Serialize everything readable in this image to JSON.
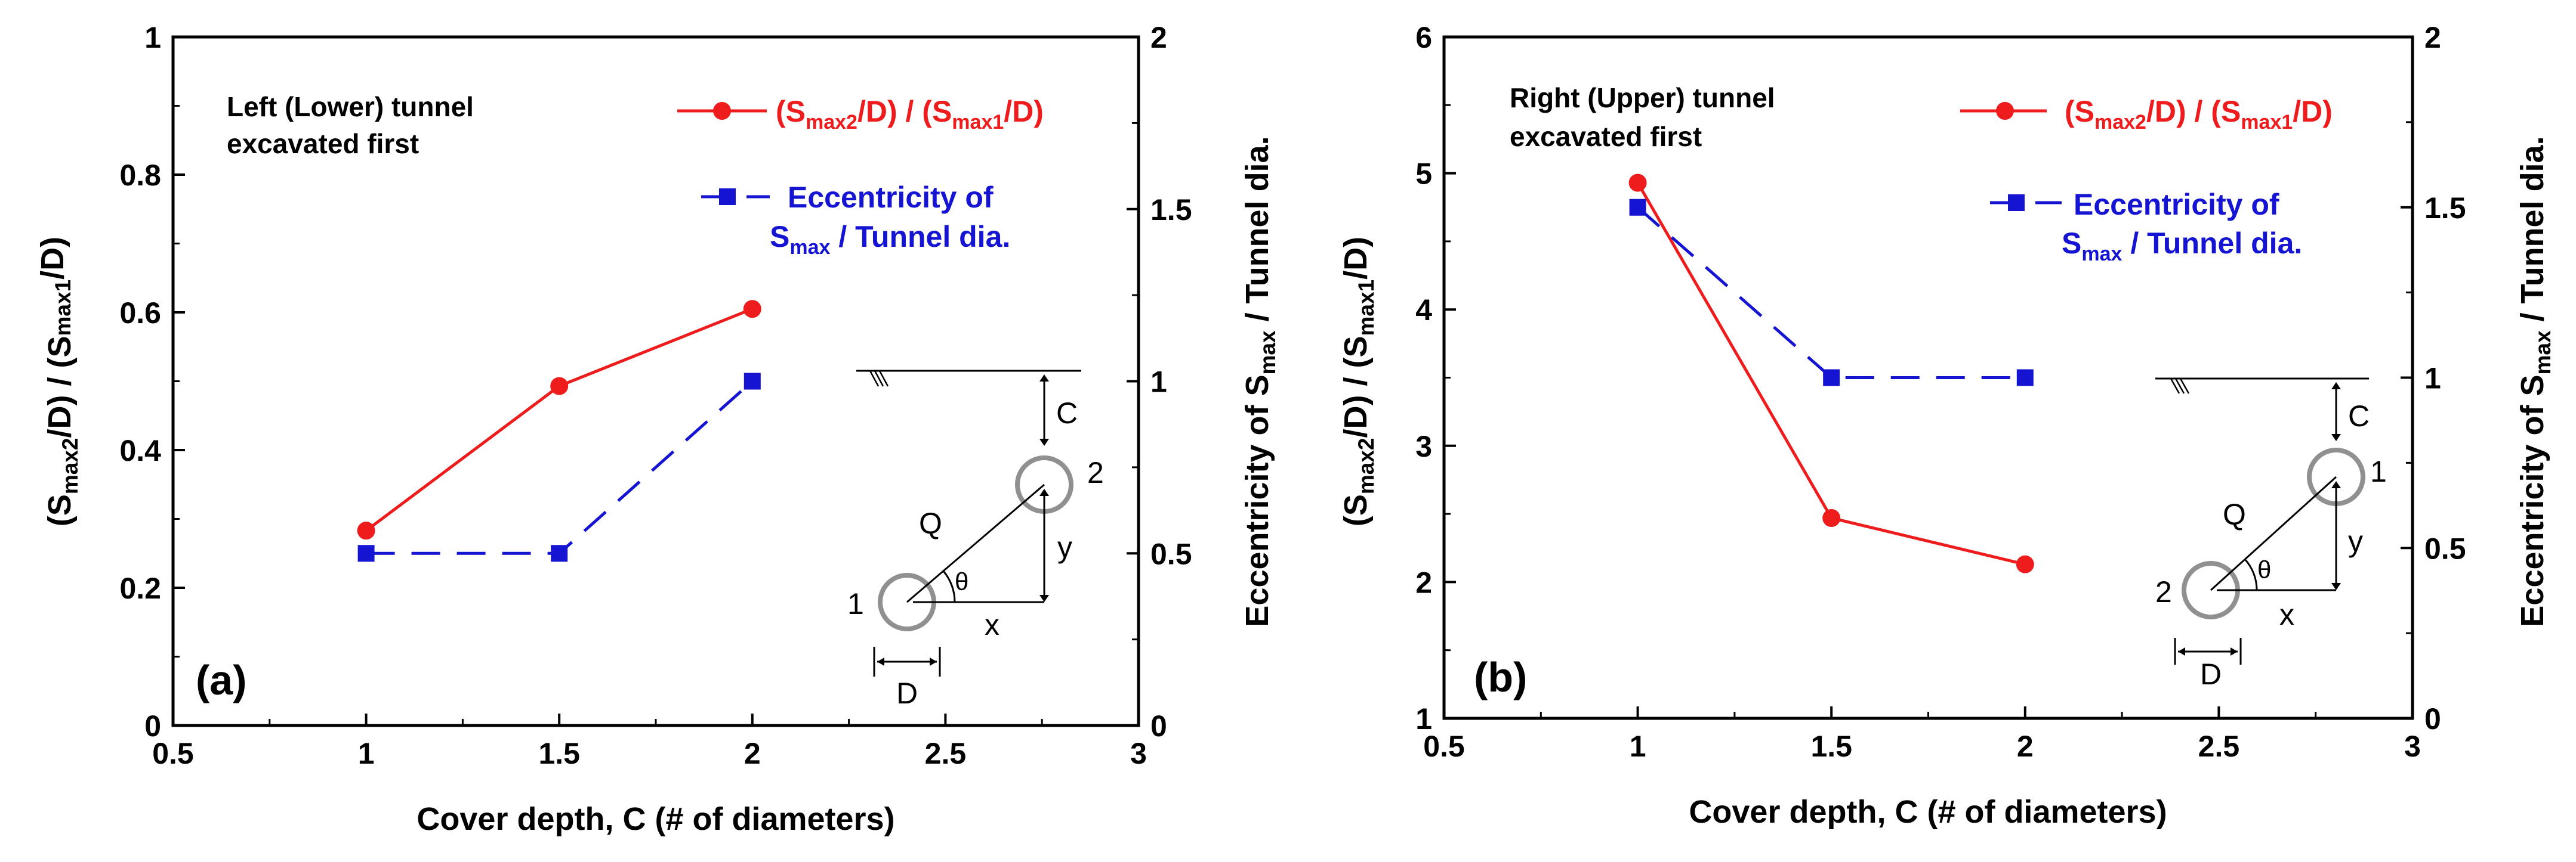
{
  "colors": {
    "red": "#ee1c1c",
    "blue": "#1414d2",
    "axis": "#000000",
    "inset": "#888888"
  },
  "chart_data": [
    {
      "panel_label": "(a)",
      "type": "line",
      "x": [
        1,
        1.5,
        2
      ],
      "xlim": [
        0.5,
        3
      ],
      "xticks": [
        "0.5",
        "1",
        "1.5",
        "2",
        "2.5",
        "3"
      ],
      "xlabel": "Cover depth, C (# of diameters)",
      "ylim": [
        0,
        1
      ],
      "yticks": [
        "0",
        "0.2",
        "0.4",
        "0.6",
        "0.8",
        "1"
      ],
      "ylabel": {
        "p1": "(S",
        "s1": "max2",
        "p2": "/D) / (S",
        "s2": "max1",
        "p3": "/D)"
      },
      "y2lim": [
        0,
        2
      ],
      "y2ticks": [
        "0",
        "0.5",
        "1",
        "1.5",
        "2"
      ],
      "y2label": {
        "p1": "Eccentricity of S",
        "s1": "max",
        "p2": " / Tunnel dia."
      },
      "annotation": [
        "Left (Lower) tunnel",
        "excavated first"
      ],
      "series": [
        {
          "name": "(Smax2/D) / (Smax1/D)",
          "axis": "left",
          "marker": "circle",
          "style": "solid",
          "values": [
            0.283,
            0.493,
            0.605
          ]
        },
        {
          "name": "Eccentricity of Smax / Tunnel dia.",
          "axis": "right",
          "marker": "square",
          "style": "dashed",
          "values": [
            0.5,
            0.5,
            1.0
          ]
        }
      ],
      "legend": {
        "red": {
          "p1": "(S",
          "s1": "max2",
          "p2": "/D) / (S",
          "s2": "max1",
          "p3": "/D)"
        },
        "blue_line1": "Eccentricity of",
        "blue_line2": {
          "p1": "S",
          "s1": "max",
          "p2": " / Tunnel dia."
        }
      },
      "inset": {
        "C": "C",
        "Q": "Q",
        "theta": "θ",
        "y": "y",
        "x": "x",
        "D": "D",
        "upper_tunnel": "2",
        "lower_tunnel": "1"
      }
    },
    {
      "panel_label": "(b)",
      "type": "line",
      "x": [
        1,
        1.5,
        2
      ],
      "xlim": [
        0.5,
        3
      ],
      "xticks": [
        "0.5",
        "1",
        "1.5",
        "2",
        "2.5",
        "3"
      ],
      "xlabel": "Cover depth, C (# of diameters)",
      "ylim": [
        1,
        6
      ],
      "yticks": [
        "1",
        "2",
        "3",
        "4",
        "5",
        "6"
      ],
      "ylabel": {
        "p1": "(S",
        "s1": "max2",
        "p2": "/D) / (S",
        "s2": "max1",
        "p3": "/D)"
      },
      "y2lim": [
        0,
        2
      ],
      "y2ticks": [
        "0",
        "0.5",
        "1",
        "1.5",
        "2"
      ],
      "y2label": {
        "p1": "Eccentricity of S",
        "s1": "max",
        "p2": " / Tunnel dia."
      },
      "annotation": [
        "Right (Upper) tunnel",
        "excavated first"
      ],
      "series": [
        {
          "name": "(Smax2/D) / (Smax1/D)",
          "axis": "left",
          "marker": "circle",
          "style": "solid",
          "values": [
            4.93,
            2.47,
            2.13
          ]
        },
        {
          "name": "Eccentricity of Smax / Tunnel dia.",
          "axis": "right",
          "marker": "square",
          "style": "dashed",
          "values": [
            1.5,
            1.0,
            1.0
          ]
        }
      ],
      "legend": {
        "red": {
          "p1": "(S",
          "s1": "max2",
          "p2": "/D) / (S",
          "s2": "max1",
          "p3": "/D)"
        },
        "blue_line1": "Eccentricity of",
        "blue_line2": {
          "p1": "S",
          "s1": "max",
          "p2": " / Tunnel dia."
        }
      },
      "inset": {
        "C": "C",
        "Q": "Q",
        "theta": "θ",
        "y": "y",
        "x": "x",
        "D": "D",
        "upper_tunnel": "1",
        "lower_tunnel": "2"
      }
    }
  ]
}
